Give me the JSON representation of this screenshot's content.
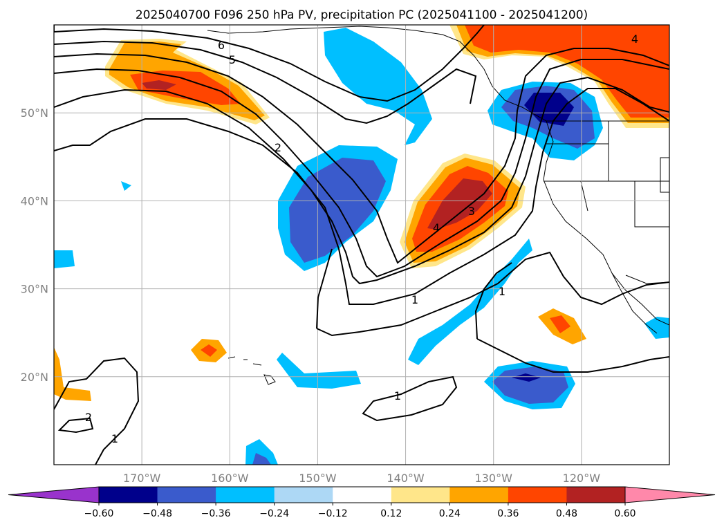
{
  "chart_data": {
    "type": "contour-map",
    "title": "2025040700 F096 250 hPa PV, precipitation PC (2025041100 - 2025041200)",
    "map": {
      "lon_range": [
        180,
        110
      ],
      "lat_range": [
        10,
        60
      ],
      "grid": true
    },
    "x_ticks": [
      {
        "lon": 170,
        "label": "170°W"
      },
      {
        "lon": 160,
        "label": "160°W"
      },
      {
        "lon": 150,
        "label": "150°W"
      },
      {
        "lon": 140,
        "label": "140°W"
      },
      {
        "lon": 130,
        "label": "130°W"
      },
      {
        "lon": 120,
        "label": "120°W"
      }
    ],
    "y_ticks": [
      {
        "lat": 50,
        "label": "50°N"
      },
      {
        "lat": 40,
        "label": "40°N"
      },
      {
        "lat": 30,
        "label": "30°N"
      },
      {
        "lat": 20,
        "label": "20°N"
      }
    ],
    "colorbar": {
      "levels": [
        -0.6,
        -0.48,
        -0.36,
        -0.24,
        -0.12,
        0.12,
        0.24,
        0.36,
        0.48,
        0.6
      ],
      "labels": [
        "−0.60",
        "−0.48",
        "−0.36",
        "−0.24",
        "−0.12",
        "0.12",
        "0.24",
        "0.36",
        "0.48",
        "0.60"
      ],
      "colors": [
        "#9933cc",
        "#00008b",
        "#3a5bcc",
        "#00bfff",
        "#add8f5",
        "#ffffff",
        "#ffe68a",
        "#ffa500",
        "#ff4500",
        "#b22222",
        "#ff88aa"
      ],
      "extend": "both"
    },
    "pv_contour_labels": [
      "6",
      "5",
      "2",
      "4",
      "3",
      "1",
      "1",
      "1",
      "2",
      "1",
      "4"
    ]
  }
}
